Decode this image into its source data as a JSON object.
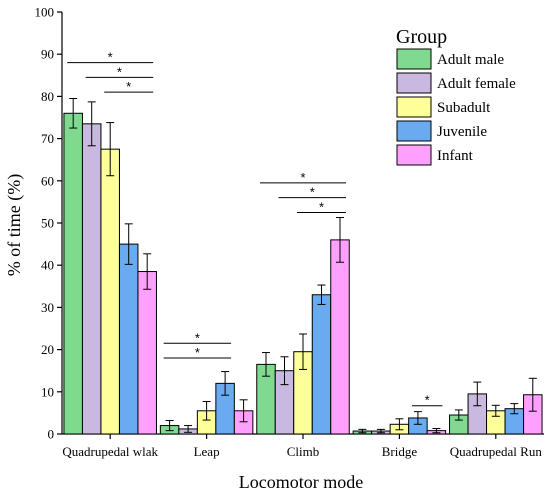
{
  "chart_data": {
    "type": "bar",
    "title": "",
    "xlabel": "Locomotor mode",
    "ylabel": "% of time (%)",
    "ylim": [
      0,
      100
    ],
    "yticks": [
      0,
      10,
      20,
      30,
      40,
      50,
      60,
      70,
      80,
      90,
      100
    ],
    "categories": [
      "Quadrupedal wlak",
      "Leap",
      "Climb",
      "Bridge",
      "Quadrupedal Run"
    ],
    "legend": {
      "title": "Group",
      "placement": "top-right"
    },
    "series": [
      {
        "name": "Adult male",
        "color": "#7fd98f",
        "values": [
          76,
          2,
          16.5,
          0.7,
          4.5
        ],
        "errors": [
          3.5,
          1.2,
          2.8,
          0.4,
          1.2
        ]
      },
      {
        "name": "Adult female",
        "color": "#c9b8e0",
        "values": [
          73.5,
          1.2,
          15,
          0.7,
          9.5
        ],
        "errors": [
          5.2,
          0.8,
          3.3,
          0.4,
          2.8
        ]
      },
      {
        "name": "Subadult",
        "color": "#ffff99",
        "values": [
          67.5,
          5.5,
          19.5,
          2.3,
          5.5
        ],
        "errors": [
          6.3,
          2.2,
          4.2,
          1.3,
          1.3
        ]
      },
      {
        "name": "Juvenile",
        "color": "#6aaaf0",
        "values": [
          45,
          12,
          33,
          3.8,
          6
        ],
        "errors": [
          4.8,
          2.8,
          2.3,
          1.5,
          1.2
        ]
      },
      {
        "name": "Infant",
        "color": "#ffa0ff",
        "values": [
          38.5,
          5.5,
          46,
          0.8,
          9.3
        ],
        "errors": [
          4.2,
          2.6,
          5.3,
          0.5,
          3.9
        ]
      }
    ],
    "significance": [
      {
        "category": 0,
        "from": 0,
        "to": 4,
        "y": 88,
        "label": "*"
      },
      {
        "category": 0,
        "from": 1,
        "to": 4,
        "y": 84.5,
        "label": "*"
      },
      {
        "category": 0,
        "from": 2,
        "to": 4,
        "y": 81,
        "label": "*"
      },
      {
        "category": 1,
        "from": 0,
        "to": 3,
        "y": 21.5,
        "label": "*"
      },
      {
        "category": 1,
        "from": 0,
        "to": 3,
        "y": 18,
        "label": "*"
      },
      {
        "category": 2,
        "from": 0,
        "to": 4,
        "y": 59.5,
        "label": "*"
      },
      {
        "category": 2,
        "from": 1,
        "to": 4,
        "y": 56,
        "label": "*"
      },
      {
        "category": 2,
        "from": 2,
        "to": 4,
        "y": 52.5,
        "label": "*"
      },
      {
        "category": 3,
        "from": 3,
        "to": 4,
        "y": 6.7,
        "label": "*"
      }
    ]
  }
}
